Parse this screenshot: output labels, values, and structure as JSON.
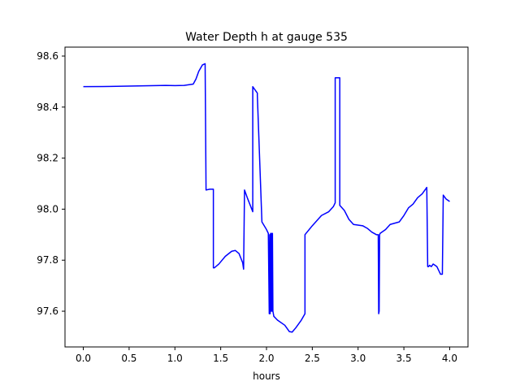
{
  "chart_data": {
    "type": "line",
    "title": "Water Depth h at gauge 535",
    "xlabel": "hours",
    "ylabel": "",
    "xlim": [
      -0.2,
      4.2
    ],
    "ylim": [
      97.46,
      98.635
    ],
    "xticks": [
      0.0,
      0.5,
      1.0,
      1.5,
      2.0,
      2.5,
      3.0,
      3.5,
      4.0
    ],
    "xtick_labels": [
      "0.0",
      "0.5",
      "1.0",
      "1.5",
      "2.0",
      "2.5",
      "3.0",
      "3.5",
      "4.0"
    ],
    "yticks": [
      97.6,
      97.8,
      98.0,
      98.2,
      98.4,
      98.6
    ],
    "ytick_labels": [
      "97.6",
      "97.8",
      "98.0",
      "98.2",
      "98.4",
      "98.6"
    ],
    "grid": false,
    "series": [
      {
        "name": "",
        "color": "#0000ff",
        "x": [
          0.0,
          0.3,
          0.6,
          0.9,
          1.0,
          1.1,
          1.2,
          1.23,
          1.26,
          1.3,
          1.33,
          1.34,
          1.34,
          1.38,
          1.42,
          1.42,
          1.43,
          1.48,
          1.55,
          1.62,
          1.66,
          1.7,
          1.74,
          1.75,
          1.76,
          1.79,
          1.85,
          1.85,
          1.9,
          1.9,
          1.95,
          2.0,
          2.02,
          2.03,
          2.035,
          2.04,
          2.045,
          2.05,
          2.055,
          2.06,
          2.065,
          2.07,
          2.075,
          2.08,
          2.12,
          2.2,
          2.25,
          2.28,
          2.32,
          2.38,
          2.42,
          2.42,
          2.5,
          2.6,
          2.68,
          2.73,
          2.75,
          2.75,
          2.8,
          2.8,
          2.85,
          2.9,
          2.95,
          3.05,
          3.1,
          3.15,
          3.2,
          3.22,
          3.225,
          3.23,
          3.235,
          3.24,
          3.3,
          3.35,
          3.45,
          3.5,
          3.55,
          3.6,
          3.65,
          3.7,
          3.75,
          3.76,
          3.77,
          3.78,
          3.8,
          3.82,
          3.84,
          3.86,
          3.88,
          3.9,
          3.92,
          3.93,
          3.93,
          3.96,
          4.0
        ],
        "y": [
          98.48,
          98.481,
          98.483,
          98.485,
          98.484,
          98.485,
          98.49,
          98.51,
          98.54,
          98.565,
          98.57,
          98.075,
          98.075,
          98.078,
          98.078,
          97.77,
          97.77,
          97.785,
          97.815,
          97.835,
          97.838,
          97.826,
          97.79,
          97.765,
          98.075,
          98.045,
          97.99,
          98.48,
          98.455,
          98.445,
          97.95,
          97.92,
          97.905,
          97.59,
          97.9,
          97.59,
          97.905,
          97.6,
          97.905,
          97.6,
          97.905,
          97.6,
          97.59,
          97.58,
          97.565,
          97.545,
          97.52,
          97.518,
          97.535,
          97.565,
          97.59,
          97.9,
          97.935,
          97.975,
          97.99,
          98.01,
          98.025,
          98.515,
          98.515,
          98.015,
          97.995,
          97.96,
          97.94,
          97.935,
          97.925,
          97.91,
          97.9,
          97.9,
          97.59,
          97.6,
          97.9,
          97.905,
          97.92,
          97.94,
          97.95,
          97.975,
          98.005,
          98.02,
          98.045,
          98.06,
          98.085,
          97.775,
          97.775,
          97.78,
          97.775,
          97.785,
          97.78,
          97.775,
          97.76,
          97.745,
          97.745,
          98.055,
          98.055,
          98.04,
          98.03
        ]
      }
    ]
  }
}
